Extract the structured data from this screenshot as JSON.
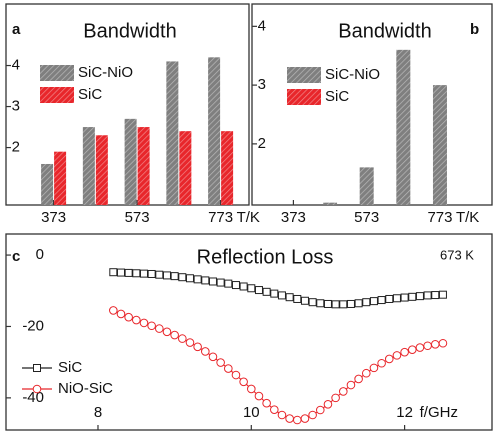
{
  "chart_data": [
    {
      "type": "bar",
      "panel_label": "a",
      "title": "Bandwidth",
      "xlabel": "T/K",
      "x": [
        373,
        473,
        573,
        673,
        773
      ],
      "xlim": [
        259,
        841
      ],
      "xticks": [
        373,
        573,
        773
      ],
      "ylim": [
        0.6,
        5.5
      ],
      "yticks": [
        2,
        3,
        4
      ],
      "series": [
        {
          "name": "SiC-NiO",
          "color": "#7f7f7f",
          "values": [
            1.6,
            2.5,
            2.7,
            4.1,
            4.2
          ]
        },
        {
          "name": "SiC",
          "color": "#e8262b",
          "values": [
            1.9,
            2.3,
            2.5,
            2.4,
            2.4
          ]
        }
      ]
    },
    {
      "type": "bar",
      "panel_label": "b",
      "title": "Bandwidth",
      "xlabel": "T/K",
      "x": [
        473,
        573,
        673,
        773
      ],
      "xlim": [
        260,
        915
      ],
      "xticks": [
        373,
        573,
        773
      ],
      "ylim": [
        0.96,
        4.38
      ],
      "yticks": [
        2,
        3,
        4
      ],
      "series": [
        {
          "name": "SiC-NiO",
          "color": "#7f7f7f",
          "values": [
            1.0,
            1.6,
            3.6,
            3.0
          ]
        },
        {
          "name": "SiC",
          "color": "#e8262b",
          "values": [
            null,
            null,
            null,
            null
          ]
        }
      ]
    },
    {
      "type": "line",
      "panel_label": "c",
      "title": "Reflection Loss",
      "annotation": "673 K",
      "xlabel": "f/GHz",
      "x": [
        8.2,
        8.3,
        8.4,
        8.5,
        8.6,
        8.7,
        8.8,
        8.9,
        9.0,
        9.1,
        9.2,
        9.3,
        9.4,
        9.5,
        9.6,
        9.7,
        9.8,
        9.9,
        10.0,
        10.1,
        10.2,
        10.3,
        10.4,
        10.5,
        10.6,
        10.7,
        10.8,
        10.9,
        11.0,
        11.1,
        11.2,
        11.3,
        11.4,
        11.5,
        11.6,
        11.7,
        11.8,
        11.9,
        12.0,
        12.1,
        12.2,
        12.3,
        12.4,
        12.5
      ],
      "xlim": [
        6.8,
        13.14
      ],
      "xticks": [
        8,
        10,
        12
      ],
      "ylim": [
        -49,
        5.9
      ],
      "yticks": [
        0,
        -20,
        -40
      ],
      "series": [
        {
          "name": "SiC",
          "color": "#222222",
          "marker": "square",
          "values": [
            -4.8,
            -4.9,
            -5.0,
            -5.1,
            -5.2,
            -5.3,
            -5.5,
            -5.7,
            -5.9,
            -6.2,
            -6.5,
            -6.8,
            -7.1,
            -7.4,
            -7.7,
            -8.0,
            -8.4,
            -8.8,
            -9.3,
            -9.8,
            -10.3,
            -10.8,
            -11.3,
            -11.8,
            -12.3,
            -12.8,
            -13.2,
            -13.5,
            -13.7,
            -13.8,
            -13.8,
            -13.7,
            -13.5,
            -13.2,
            -12.9,
            -12.6,
            -12.3,
            -12.1,
            -11.9,
            -11.7,
            -11.5,
            -11.3,
            -11.2,
            -11.1
          ]
        },
        {
          "name": "NiO-SiC",
          "color": "#e8262b",
          "marker": "circle",
          "values": [
            -15.5,
            -16.5,
            -17.4,
            -18.2,
            -19.0,
            -19.8,
            -20.6,
            -21.5,
            -22.4,
            -23.4,
            -24.5,
            -25.7,
            -27.0,
            -28.5,
            -30.1,
            -31.8,
            -33.6,
            -35.5,
            -37.5,
            -39.5,
            -41.5,
            -43.3,
            -44.8,
            -45.8,
            -46.2,
            -45.8,
            -44.8,
            -43.4,
            -41.8,
            -40.0,
            -38.2,
            -36.4,
            -34.7,
            -33.1,
            -31.6,
            -30.3,
            -29.1,
            -28.1,
            -27.2,
            -26.5,
            -25.9,
            -25.4,
            -25.0,
            -24.7
          ]
        }
      ]
    }
  ]
}
